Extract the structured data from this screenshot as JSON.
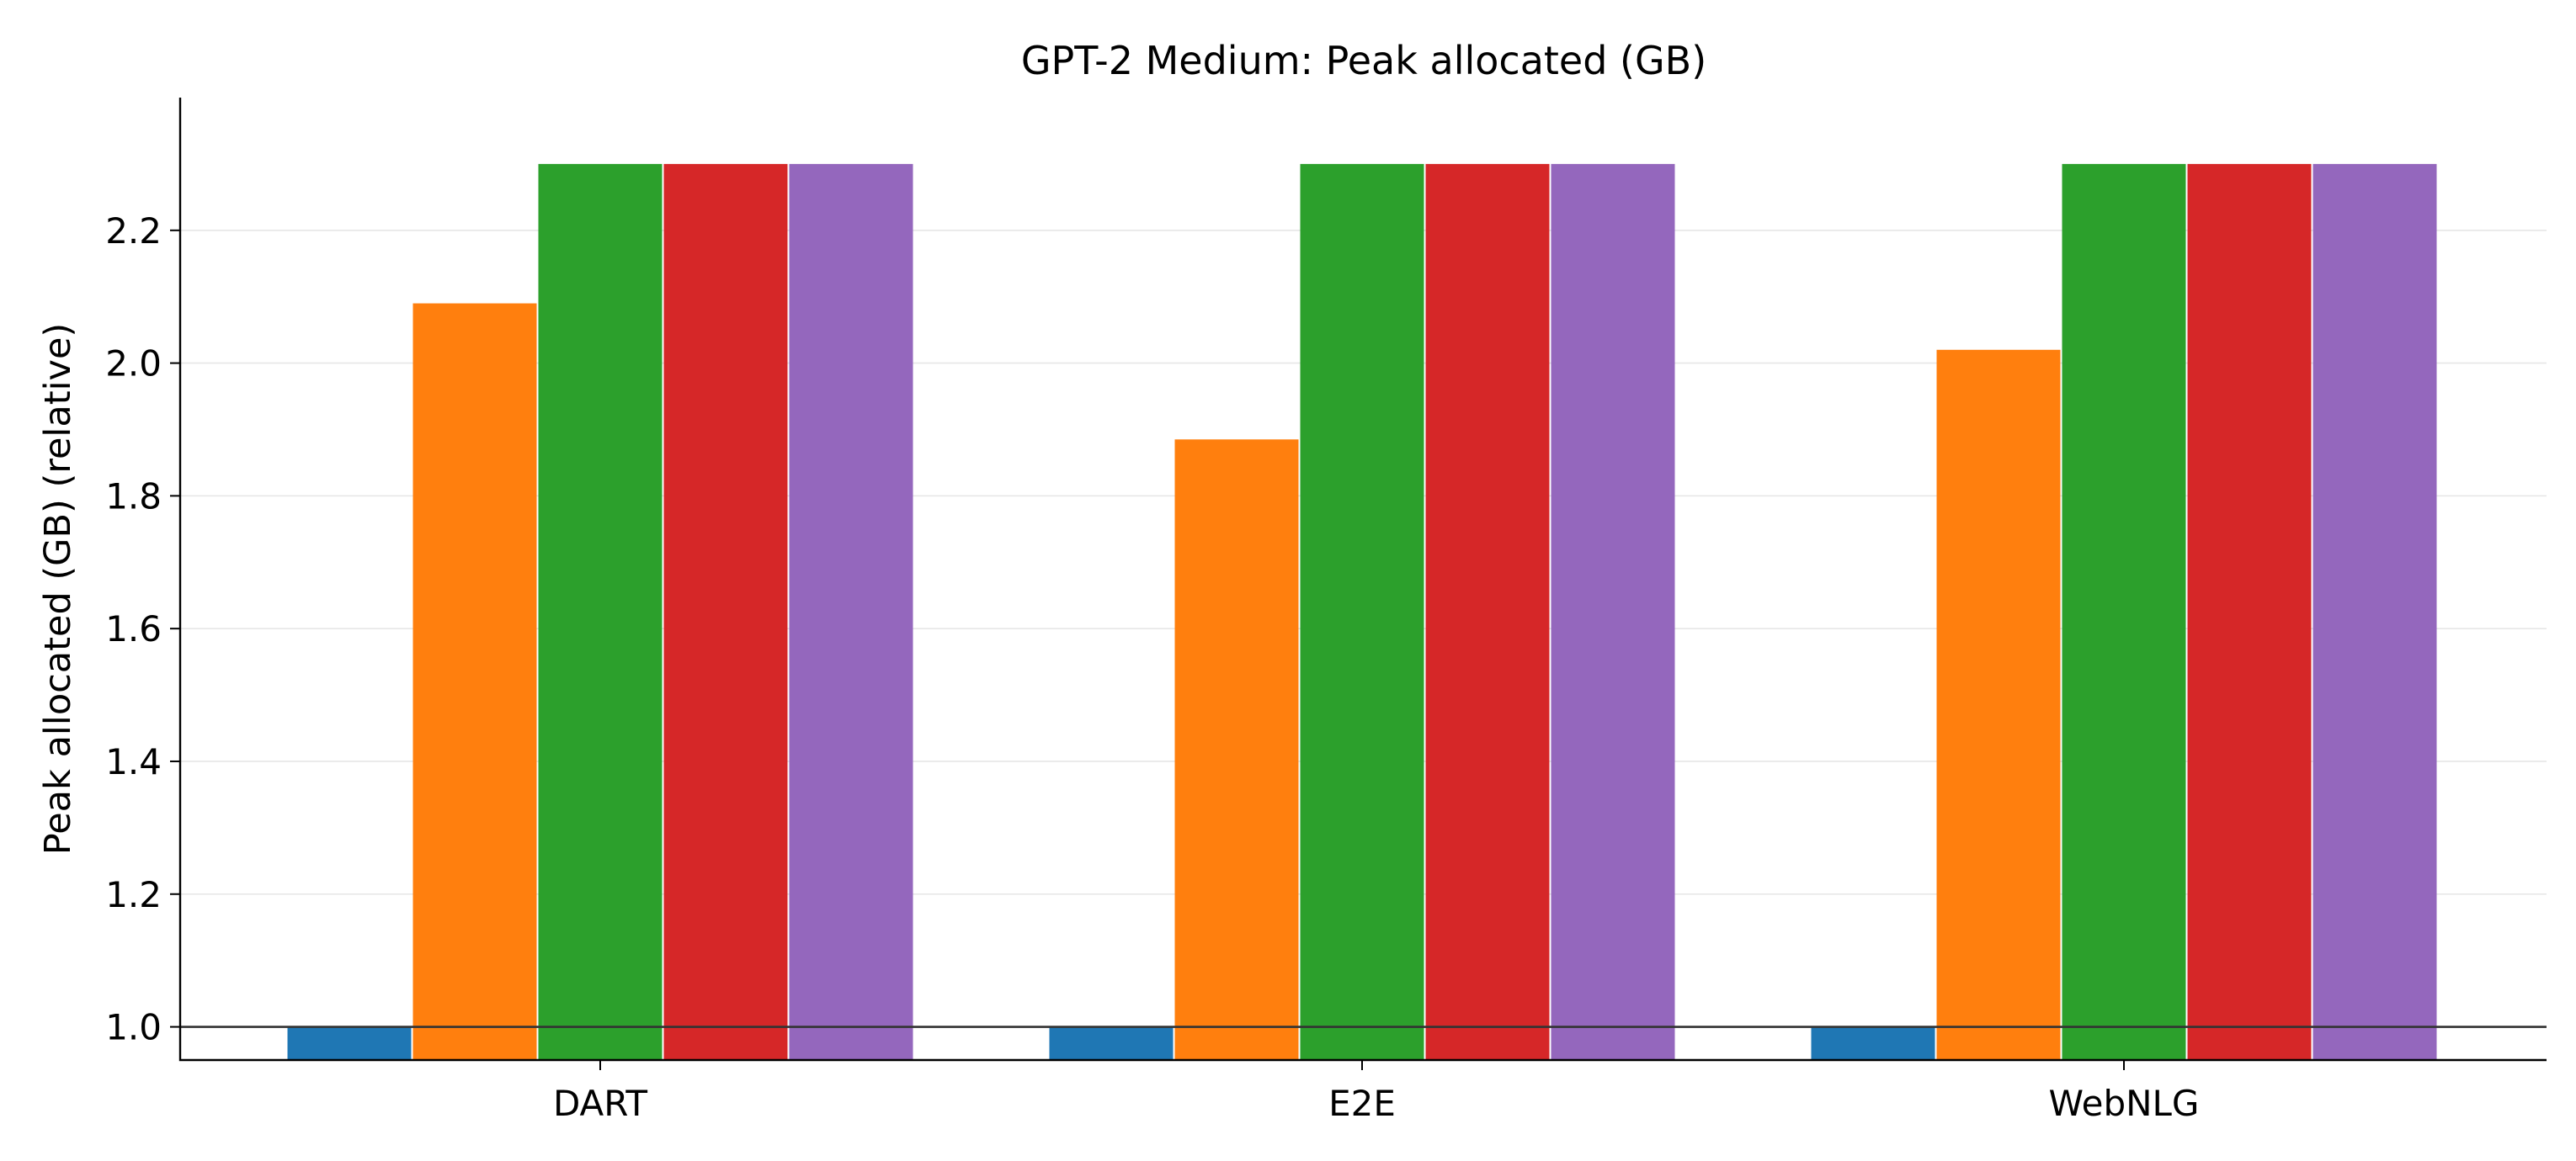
{
  "chart_data": {
    "type": "bar",
    "title": "GPT-2 Medium: Peak allocated (GB)",
    "xlabel": "",
    "ylabel": "Peak allocated (GB) (relative)",
    "categories": [
      "DART",
      "E2E",
      "WebNLG"
    ],
    "ylim": [
      0.95,
      2.4
    ],
    "yticks": [
      1.0,
      1.2,
      1.4,
      1.6,
      1.8,
      2.0,
      2.2
    ],
    "ytick_labels": [
      "1.0",
      "1.2",
      "1.4",
      "1.6",
      "1.8",
      "2.0",
      "2.2"
    ],
    "reference_line": 1.0,
    "grid": "y",
    "legend": "none",
    "series": [
      {
        "color": "#1f77b4",
        "values": [
          1.0,
          1.0,
          1.0
        ]
      },
      {
        "color": "#ff7f0e",
        "values": [
          2.09,
          1.885,
          2.02
        ]
      },
      {
        "color": "#2ca02c",
        "values": [
          2.3,
          2.3,
          2.3
        ]
      },
      {
        "color": "#d62728",
        "values": [
          2.3,
          2.3,
          2.3
        ]
      },
      {
        "color": "#9467bd",
        "values": [
          2.3,
          2.3,
          2.3
        ]
      }
    ]
  }
}
